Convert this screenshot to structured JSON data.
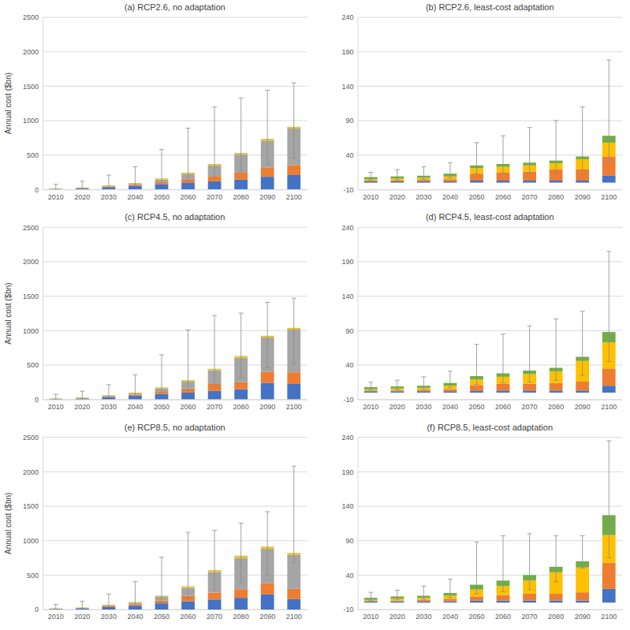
{
  "chart_data": [
    {
      "type": "bar",
      "stacked": true,
      "grid": true,
      "title": "(a) RCP2.6, no adaptation",
      "y_label": "Annual cost ($bn)",
      "categories": [
        "2010",
        "2020",
        "2030",
        "2040",
        "2050",
        "2060",
        "2070",
        "2080",
        "2090",
        "2100"
      ],
      "series": [
        {
          "color": "#4472c4",
          "values": [
            8,
            15,
            35,
            55,
            75,
            95,
            120,
            145,
            185,
            210
          ]
        },
        {
          "color": "#ed7d31",
          "values": [
            2,
            5,
            10,
            15,
            40,
            55,
            75,
            100,
            130,
            145
          ]
        },
        {
          "color": "#a5a5a5",
          "values": [
            1,
            3,
            5,
            12,
            30,
            75,
            155,
            265,
            395,
            530
          ]
        },
        {
          "color": "#ffc000",
          "values": [
            3,
            5,
            8,
            10,
            12,
            15,
            15,
            15,
            20,
            20
          ]
        },
        {
          "color": "#70ad47",
          "values": [
            1,
            2,
            2,
            3,
            3,
            5,
            5,
            5,
            5,
            5
          ]
        }
      ],
      "whisker_low": [
        8,
        15,
        30,
        50,
        80,
        120,
        185,
        265,
        370,
        455
      ],
      "whisker_high": [
        75,
        120,
        210,
        330,
        580,
        890,
        1200,
        1330,
        1440,
        1550
      ],
      "ylim": [
        0,
        2500
      ],
      "yticks": [
        0,
        500,
        1000,
        1500,
        2000,
        2500
      ]
    },
    {
      "type": "bar",
      "stacked": true,
      "grid": true,
      "title": "(b) RCP2.6, least-cost adaptation",
      "categories": [
        "2010",
        "2020",
        "2030",
        "2040",
        "2050",
        "2060",
        "2070",
        "2080",
        "2090",
        "2100"
      ],
      "series": [
        {
          "color": "#4472c4",
          "values": [
            2,
            2,
            2,
            2,
            3,
            3,
            3,
            3,
            3,
            10
          ]
        },
        {
          "color": "#ed7d31",
          "values": [
            1,
            1,
            2,
            3,
            10,
            12,
            13,
            16,
            16,
            28
          ]
        },
        {
          "color": "#ffc000",
          "values": [
            2,
            3,
            3,
            4,
            8,
            8,
            9,
            9,
            15,
            20
          ]
        },
        {
          "color": "#70ad47",
          "values": [
            3,
            3,
            3,
            4,
            4,
            4,
            4,
            4,
            4,
            10
          ]
        }
      ],
      "whisker_low": [
        4,
        4,
        5,
        7,
        13,
        14,
        14,
        15,
        18,
        30
      ],
      "whisker_high": [
        15,
        19,
        23,
        29,
        58,
        68,
        80,
        90,
        110,
        178
      ],
      "ylim": [
        -10,
        240
      ],
      "yticks": [
        -10,
        40,
        90,
        140,
        190,
        240
      ]
    },
    {
      "type": "bar",
      "stacked": true,
      "grid": true,
      "title": "(c) RCP4.5, no adaptation",
      "y_label": "Annual cost ($bn)",
      "categories": [
        "2010",
        "2020",
        "2030",
        "2040",
        "2050",
        "2060",
        "2070",
        "2080",
        "2090",
        "2100"
      ],
      "series": [
        {
          "color": "#4472c4",
          "values": [
            8,
            15,
            35,
            55,
            80,
            100,
            125,
            150,
            240,
            225
          ]
        },
        {
          "color": "#ed7d31",
          "values": [
            2,
            5,
            10,
            15,
            30,
            60,
            100,
            100,
            160,
            170
          ]
        },
        {
          "color": "#a5a5a5",
          "values": [
            1,
            3,
            10,
            17,
            50,
            100,
            200,
            355,
            500,
            620
          ]
        },
        {
          "color": "#ffc000",
          "values": [
            3,
            5,
            8,
            10,
            12,
            15,
            15,
            20,
            20,
            20
          ]
        },
        {
          "color": "#70ad47",
          "values": [
            1,
            2,
            2,
            3,
            3,
            5,
            5,
            5,
            5,
            5
          ]
        }
      ],
      "whisker_low": [
        8,
        15,
        33,
        50,
        90,
        140,
        220,
        315,
        460,
        520
      ],
      "whisker_high": [
        75,
        120,
        215,
        360,
        650,
        1010,
        1220,
        1255,
        1410,
        1470
      ],
      "ylim": [
        0,
        2500
      ],
      "yticks": [
        0,
        500,
        1000,
        1500,
        2000,
        2500
      ]
    },
    {
      "type": "bar",
      "stacked": true,
      "grid": true,
      "title": "(d) RCP4.5, least-cost adaptation",
      "categories": [
        "2010",
        "2020",
        "2030",
        "2040",
        "2050",
        "2060",
        "2070",
        "2080",
        "2090",
        "2100"
      ],
      "series": [
        {
          "color": "#4472c4",
          "values": [
            2,
            2,
            2,
            2,
            3,
            3,
            3,
            3,
            3,
            10
          ]
        },
        {
          "color": "#ed7d31",
          "values": [
            1,
            1,
            2,
            3,
            8,
            10,
            10,
            11,
            13,
            25
          ]
        },
        {
          "color": "#ffc000",
          "values": [
            2,
            3,
            3,
            5,
            8,
            10,
            14,
            17,
            30,
            38
          ]
        },
        {
          "color": "#70ad47",
          "values": [
            3,
            3,
            3,
            4,
            5,
            5,
            5,
            5,
            6,
            15
          ]
        }
      ],
      "whisker_low": [
        4,
        4,
        5,
        7,
        12,
        14,
        15,
        18,
        25,
        45
      ],
      "whisker_high": [
        15,
        18,
        23,
        31,
        70,
        85,
        97,
        107,
        118,
        205
      ],
      "ylim": [
        -10,
        240
      ],
      "yticks": [
        -10,
        40,
        90,
        140,
        190,
        240
      ]
    },
    {
      "type": "bar",
      "stacked": true,
      "grid": true,
      "title": "(e) RCP8.5, no adaptation",
      "y_label": "Annual cost ($bn)",
      "categories": [
        "2010",
        "2020",
        "2030",
        "2040",
        "2050",
        "2060",
        "2070",
        "2080",
        "2090",
        "2100"
      ],
      "series": [
        {
          "color": "#4472c4",
          "values": [
            8,
            15,
            35,
            55,
            90,
            120,
            145,
            170,
            220,
            150
          ]
        },
        {
          "color": "#ed7d31",
          "values": [
            2,
            5,
            12,
            20,
            40,
            80,
            100,
            125,
            160,
            150
          ]
        },
        {
          "color": "#a5a5a5",
          "values": [
            1,
            3,
            13,
            22,
            55,
            115,
            300,
            455,
            500,
            495
          ]
        },
        {
          "color": "#ffc000",
          "values": [
            3,
            5,
            8,
            10,
            12,
            15,
            20,
            25,
            25,
            20
          ]
        },
        {
          "color": "#70ad47",
          "values": [
            1,
            2,
            2,
            3,
            3,
            5,
            5,
            5,
            5,
            5
          ]
        }
      ],
      "whisker_low": [
        8,
        15,
        35,
        55,
        100,
        170,
        285,
        390,
        500,
        680
      ],
      "whisker_high": [
        75,
        120,
        225,
        405,
        760,
        1120,
        1150,
        1255,
        1420,
        2080
      ],
      "ylim": [
        0,
        2500
      ],
      "yticks": [
        0,
        500,
        1000,
        1500,
        2000,
        2500
      ]
    },
    {
      "type": "bar",
      "stacked": true,
      "grid": true,
      "title": "(f) RCP8.5, least-cost adaptation",
      "categories": [
        "2010",
        "2020",
        "2030",
        "2040",
        "2050",
        "2060",
        "2070",
        "2080",
        "2090",
        "2100"
      ],
      "series": [
        {
          "color": "#4472c4",
          "values": [
            2,
            2,
            2,
            2,
            3,
            3,
            3,
            3,
            3,
            20
          ]
        },
        {
          "color": "#ed7d31",
          "values": [
            1,
            1,
            2,
            3,
            6,
            8,
            10,
            10,
            12,
            38
          ]
        },
        {
          "color": "#ffc000",
          "values": [
            1,
            3,
            3,
            5,
            10,
            13,
            19,
            31,
            36,
            40
          ]
        },
        {
          "color": "#70ad47",
          "values": [
            3,
            3,
            3,
            4,
            7,
            8,
            8,
            8,
            9,
            29
          ]
        }
      ],
      "whisker_low": [
        3,
        4,
        5,
        7,
        13,
        16,
        19,
        30,
        50,
        65
      ],
      "whisker_high": [
        15,
        18,
        24,
        34,
        88,
        97,
        100,
        97,
        97,
        235
      ],
      "ylim": [
        -10,
        240
      ],
      "yticks": [
        -10,
        40,
        90,
        140,
        190,
        240
      ]
    }
  ]
}
